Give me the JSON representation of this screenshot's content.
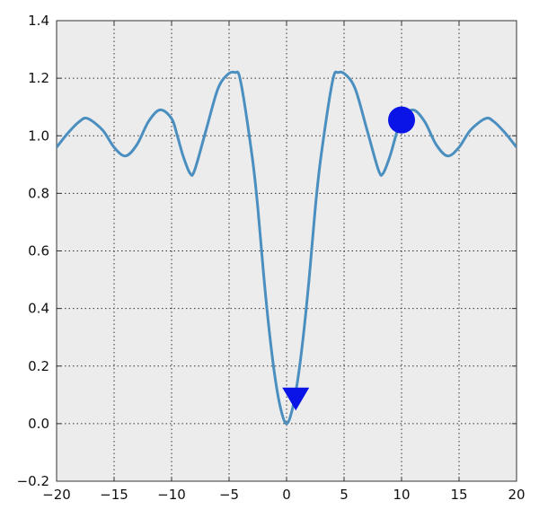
{
  "chart_data": {
    "type": "line",
    "title": "",
    "xlabel": "",
    "ylabel": "",
    "xlim": [
      -20,
      20
    ],
    "ylim": [
      -0.2,
      1.4
    ],
    "grid": true,
    "x_ticks": [
      -20,
      -15,
      -10,
      -5,
      0,
      5,
      10,
      15,
      20
    ],
    "y_ticks": [
      -0.2,
      0.0,
      0.2,
      0.4,
      0.6,
      0.8,
      1.0,
      1.2,
      1.4
    ],
    "x_tick_labels": [
      "−20",
      "−15",
      "−10",
      "−5",
      "0",
      "5",
      "10",
      "15",
      "20"
    ],
    "y_tick_labels": [
      "−0.2",
      "0.0",
      "0.2",
      "0.4",
      "0.6",
      "0.8",
      "1.0",
      "1.2",
      "1.4"
    ],
    "series": [
      {
        "color": "#4a8fc0",
        "x": [
          -20,
          -19,
          -18,
          -17.3,
          -16,
          -15,
          -14,
          -13,
          -12,
          -11,
          -10,
          -9.5,
          -9,
          -8.4,
          -8,
          -7,
          -6,
          -5.2,
          -4.5,
          -4,
          -3,
          -2.5,
          -2,
          -1.5,
          -1,
          -0.5,
          0,
          0.5,
          1,
          1.5,
          2,
          2.5,
          3,
          4,
          4.5,
          5.2,
          6,
          7,
          8,
          8.4,
          9,
          9.5,
          10,
          11,
          12,
          13,
          14,
          15,
          16,
          17.3,
          18,
          19,
          20
        ],
        "y": [
          0.96,
          1.01,
          1.05,
          1.06,
          1.02,
          0.96,
          0.93,
          0.97,
          1.05,
          1.09,
          1.06,
          1.0,
          0.93,
          0.87,
          0.88,
          1.02,
          1.16,
          1.21,
          1.22,
          1.19,
          0.93,
          0.75,
          0.52,
          0.32,
          0.16,
          0.05,
          0.0,
          0.05,
          0.16,
          0.32,
          0.52,
          0.75,
          0.93,
          1.19,
          1.22,
          1.21,
          1.16,
          1.02,
          0.88,
          0.87,
          0.93,
          1.0,
          1.06,
          1.09,
          1.05,
          0.97,
          0.93,
          0.96,
          1.02,
          1.06,
          1.05,
          1.01,
          0.96
        ]
      }
    ],
    "markers": [
      {
        "shape": "circle",
        "x": 10,
        "y": 1.055,
        "color": "#0a14e6"
      },
      {
        "shape": "triangle-down",
        "x": 0.8,
        "y": 0.09,
        "color": "#0a14e6"
      }
    ]
  }
}
